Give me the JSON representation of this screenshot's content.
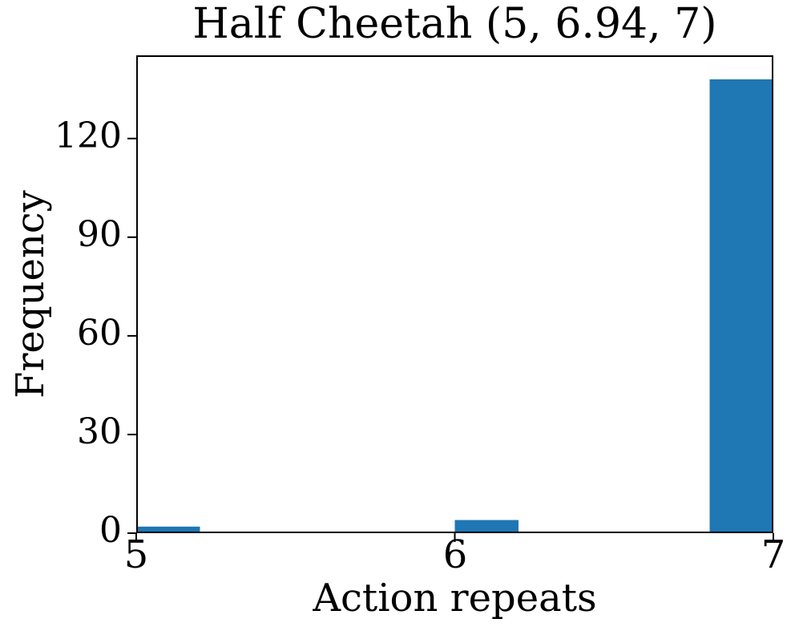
{
  "chart_data": {
    "type": "bar",
    "subtype": "histogram",
    "title": "Half Cheetah (5, 6.94, 7)",
    "xlabel": "Action repeats",
    "ylabel": "Frequency",
    "bar_color": "#1f77b4",
    "axis_color": "#000000",
    "background_color": "#ffffff",
    "grid": false,
    "legend": false,
    "xlim": [
      5,
      7
    ],
    "ylim": [
      0,
      145.3
    ],
    "x_ticks": [
      5,
      6,
      7
    ],
    "y_ticks": [
      0,
      30,
      60,
      90,
      120
    ],
    "bin_width": 0.2,
    "bars": [
      {
        "x_start": 5.0,
        "x_end": 5.2,
        "count": 2
      },
      {
        "x_start": 6.0,
        "x_end": 6.2,
        "count": 4
      },
      {
        "x_start": 6.8,
        "x_end": 7.0,
        "count": 138
      }
    ],
    "title_stats": {
      "min": 5,
      "mean": 6.94,
      "max": 7
    }
  }
}
